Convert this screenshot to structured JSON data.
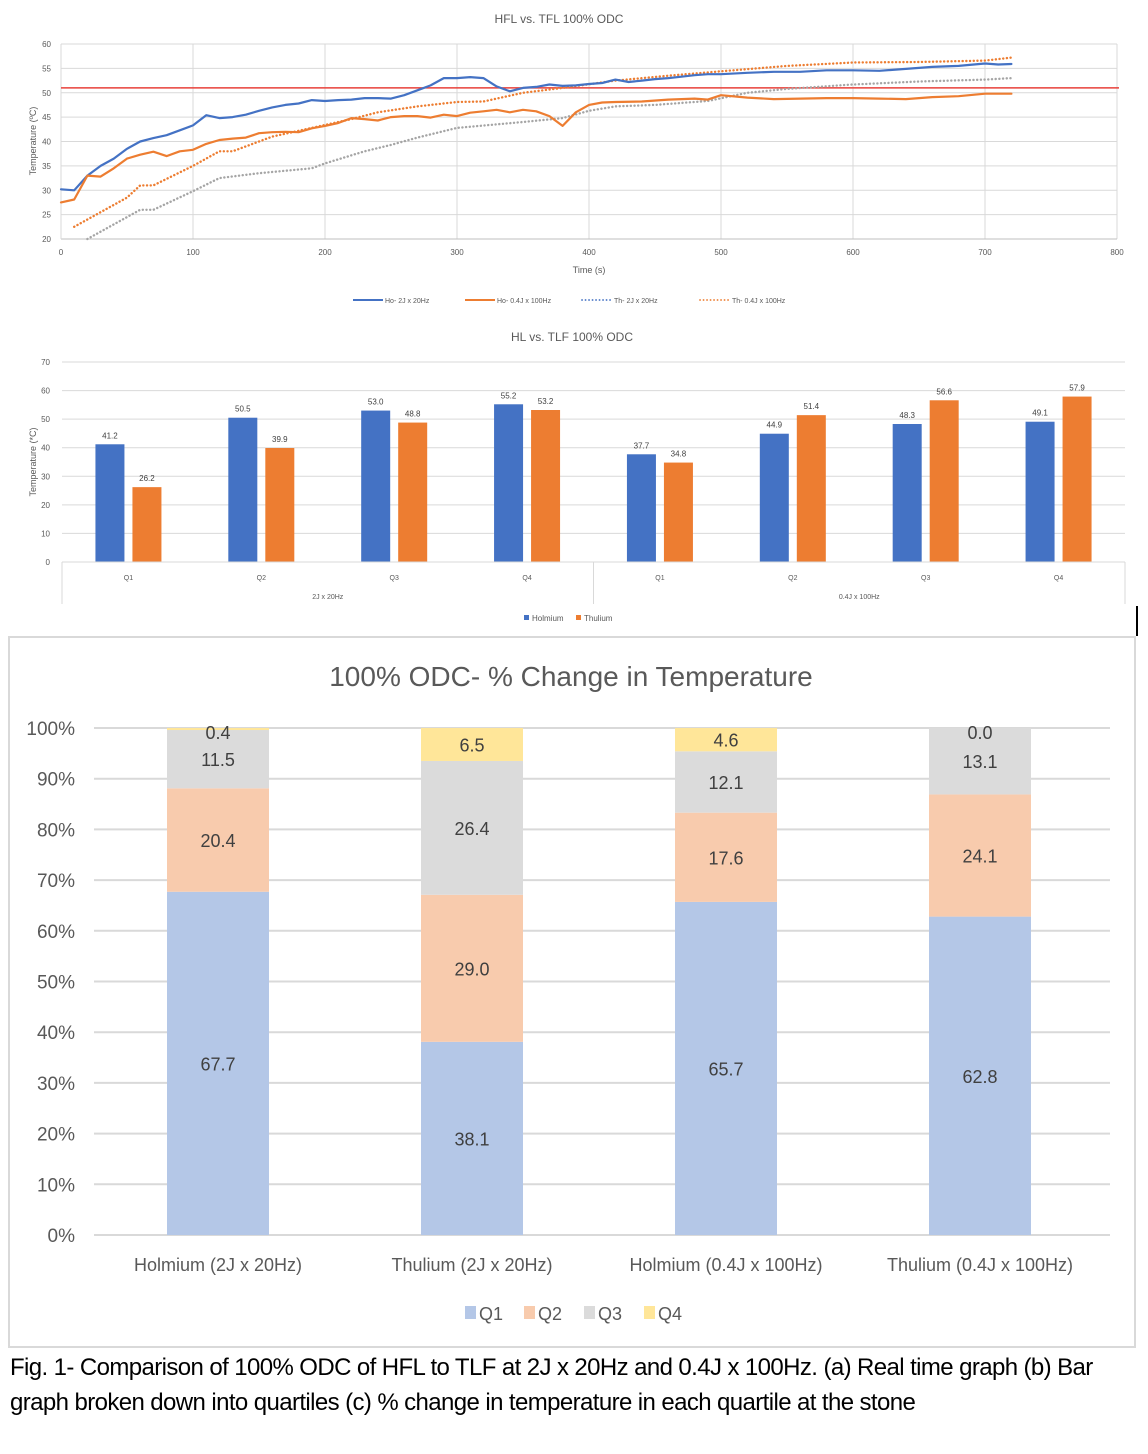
{
  "chart_data": [
    {
      "type": "line",
      "title": "HFL vs. TFL 100% ODC",
      "xlabel": "Time (s)",
      "ylabel": "Temperature (ºC)",
      "xlim": [
        0,
        800
      ],
      "ylim": [
        20,
        60
      ],
      "x_ticks": [
        "0",
        "100",
        "200",
        "300",
        "400",
        "500",
        "600",
        "700",
        "800"
      ],
      "y_ticks": [
        "20",
        "25",
        "30",
        "35",
        "40",
        "45",
        "50",
        "55",
        "60"
      ],
      "grid": true,
      "legend_position": "bottom",
      "reference_line": {
        "y": 51,
        "color": "#e8413a"
      },
      "series": [
        {
          "name": "Ho- 2J x 20Hz",
          "style": "solid",
          "color": "#4472c4",
          "legend_color": "#4472c4",
          "points": [
            [
              0,
              30.2
            ],
            [
              10,
              30
            ],
            [
              20,
              33
            ],
            [
              30,
              35
            ],
            [
              40,
              36.5
            ],
            [
              50,
              38.5
            ],
            [
              60,
              40
            ],
            [
              70,
              40.7
            ],
            [
              80,
              41.3
            ],
            [
              90,
              42.3
            ],
            [
              100,
              43.3
            ],
            [
              110,
              45.4
            ],
            [
              120,
              44.8
            ],
            [
              130,
              45
            ],
            [
              140,
              45.5
            ],
            [
              150,
              46.3
            ],
            [
              160,
              47
            ],
            [
              170,
              47.5
            ],
            [
              180,
              47.8
            ],
            [
              190,
              48.5
            ],
            [
              200,
              48.3
            ],
            [
              210,
              48.5
            ],
            [
              220,
              48.6
            ],
            [
              230,
              48.9
            ],
            [
              240,
              48.9
            ],
            [
              250,
              48.8
            ],
            [
              260,
              49.5
            ],
            [
              270,
              50.5
            ],
            [
              280,
              51.5
            ],
            [
              290,
              53
            ],
            [
              300,
              53
            ],
            [
              310,
              53.2
            ],
            [
              320,
              53
            ],
            [
              330,
              51.3
            ],
            [
              340,
              50.3
            ],
            [
              350,
              51
            ],
            [
              360,
              51.2
            ],
            [
              370,
              51.7
            ],
            [
              380,
              51.4
            ],
            [
              390,
              51.5
            ],
            [
              400,
              51.8
            ],
            [
              410,
              52
            ],
            [
              420,
              52.7
            ],
            [
              430,
              52.2
            ],
            [
              440,
              52.5
            ],
            [
              450,
              52.8
            ],
            [
              460,
              53
            ],
            [
              470,
              53.3
            ],
            [
              480,
              53.6
            ],
            [
              490,
              53.8
            ],
            [
              500,
              53.8
            ],
            [
              520,
              54.1
            ],
            [
              540,
              54.3
            ],
            [
              560,
              54.3
            ],
            [
              580,
              54.6
            ],
            [
              600,
              54.6
            ],
            [
              620,
              54.5
            ],
            [
              640,
              54.9
            ],
            [
              660,
              55.3
            ],
            [
              680,
              55.5
            ],
            [
              700,
              56
            ],
            [
              710,
              55.8
            ],
            [
              720,
              55.9
            ]
          ]
        },
        {
          "name": "Ho- 0.4J x 100Hz",
          "style": "solid",
          "color": "#ed7d31",
          "legend_color": "#ed7d31",
          "points": [
            [
              0,
              27.5
            ],
            [
              10,
              28.1
            ],
            [
              20,
              33
            ],
            [
              30,
              32.8
            ],
            [
              40,
              34.5
            ],
            [
              50,
              36.5
            ],
            [
              60,
              37.3
            ],
            [
              70,
              37.9
            ],
            [
              80,
              37
            ],
            [
              90,
              38
            ],
            [
              100,
              38.3
            ],
            [
              110,
              39.5
            ],
            [
              120,
              40.3
            ],
            [
              130,
              40.6
            ],
            [
              140,
              40.8
            ],
            [
              150,
              41.7
            ],
            [
              160,
              41.9
            ],
            [
              170,
              42
            ],
            [
              180,
              41.9
            ],
            [
              190,
              42.7
            ],
            [
              200,
              43.2
            ],
            [
              210,
              43.8
            ],
            [
              220,
              44.8
            ],
            [
              230,
              44.6
            ],
            [
              240,
              44.3
            ],
            [
              250,
              45
            ],
            [
              260,
              45.2
            ],
            [
              270,
              45.2
            ],
            [
              280,
              44.9
            ],
            [
              290,
              45.5
            ],
            [
              300,
              45.2
            ],
            [
              310,
              45.9
            ],
            [
              320,
              46.2
            ],
            [
              330,
              46.5
            ],
            [
              340,
              46
            ],
            [
              350,
              46.5
            ],
            [
              360,
              46.2
            ],
            [
              370,
              45.2
            ],
            [
              380,
              43.2
            ],
            [
              390,
              46
            ],
            [
              400,
              47.5
            ],
            [
              410,
              48
            ],
            [
              420,
              48.1
            ],
            [
              440,
              48.2
            ],
            [
              460,
              48.6
            ],
            [
              480,
              48.8
            ],
            [
              490,
              48.6
            ],
            [
              500,
              49.5
            ],
            [
              520,
              49
            ],
            [
              540,
              48.7
            ],
            [
              560,
              48.8
            ],
            [
              580,
              48.9
            ],
            [
              600,
              48.9
            ],
            [
              620,
              48.8
            ],
            [
              640,
              48.7
            ],
            [
              660,
              49.1
            ],
            [
              680,
              49.3
            ],
            [
              700,
              49.8
            ],
            [
              720,
              49.8
            ]
          ]
        },
        {
          "name": "Th- 2J x 20Hz",
          "style": "dotted",
          "color": "#a5a5a5",
          "legend_color": "#4472c4",
          "points": [
            [
              20,
              20
            ],
            [
              40,
              23
            ],
            [
              60,
              26
            ],
            [
              70,
              26
            ],
            [
              100,
              29.8
            ],
            [
              120,
              32.5
            ],
            [
              150,
              33.5
            ],
            [
              190,
              34.5
            ],
            [
              200,
              35.5
            ],
            [
              230,
              38
            ],
            [
              250,
              39.3
            ],
            [
              270,
              40.8
            ],
            [
              300,
              42.8
            ],
            [
              350,
              44
            ],
            [
              380,
              44.8
            ],
            [
              400,
              46.3
            ],
            [
              420,
              47.2
            ],
            [
              450,
              47.5
            ],
            [
              490,
              48.3
            ],
            [
              520,
              50
            ],
            [
              550,
              50.8
            ],
            [
              600,
              51.7
            ],
            [
              650,
              52.3
            ],
            [
              700,
              52.7
            ],
            [
              720,
              53
            ]
          ]
        },
        {
          "name": "Th- 0.4J x 100Hz",
          "style": "dotted",
          "color": "#ed7d31",
          "legend_color": "#ed7d31",
          "points": [
            [
              10,
              22.5
            ],
            [
              30,
              25.5
            ],
            [
              50,
              28.5
            ],
            [
              60,
              31
            ],
            [
              70,
              31
            ],
            [
              100,
              35
            ],
            [
              120,
              38
            ],
            [
              130,
              38
            ],
            [
              160,
              41
            ],
            [
              190,
              42.8
            ],
            [
              220,
              44.6
            ],
            [
              240,
              46
            ],
            [
              270,
              47.2
            ],
            [
              300,
              48.1
            ],
            [
              320,
              48.2
            ],
            [
              350,
              50
            ],
            [
              380,
              51
            ],
            [
              420,
              52.5
            ],
            [
              460,
              53.5
            ],
            [
              500,
              54.4
            ],
            [
              550,
              55.5
            ],
            [
              600,
              56.2
            ],
            [
              650,
              56.3
            ],
            [
              700,
              56.6
            ],
            [
              720,
              57.2
            ]
          ]
        }
      ]
    },
    {
      "type": "bar",
      "title": "HL vs. TLF 100% ODC",
      "xlabel": "",
      "ylabel": "Temperature (*C)",
      "ylim": [
        0,
        70
      ],
      "y_ticks": [
        "0",
        "10",
        "20",
        "30",
        "40",
        "50",
        "60",
        "70"
      ],
      "grid": true,
      "legend_position": "bottom",
      "groups": [
        {
          "label": "2J x 20Hz",
          "categories": [
            "Q1",
            "Q2",
            "Q3",
            "Q4"
          ]
        },
        {
          "label": "0.4J x 100Hz",
          "categories": [
            "Q1",
            "Q2",
            "Q3",
            "Q4"
          ]
        }
      ],
      "series": [
        {
          "name": "Holmium",
          "color": "#4472c4",
          "values": [
            41.2,
            50.5,
            53.0,
            55.2,
            37.7,
            44.9,
            48.3,
            49.1
          ],
          "labels": [
            "41.2",
            "50.5",
            "53.0",
            "55.2",
            "37.7",
            "44.9",
            "48.3",
            "49.1"
          ]
        },
        {
          "name": "Thulium",
          "color": "#ed7d31",
          "values": [
            26.2,
            39.9,
            48.8,
            53.2,
            34.8,
            51.4,
            56.6,
            57.9
          ],
          "labels": [
            "26.2",
            "39.9",
            "48.8",
            "53.2",
            "34.8",
            "51.4",
            "56.6",
            "57.9"
          ]
        }
      ]
    },
    {
      "type": "bar",
      "stacked": "percent",
      "title": "100% ODC- % Change in Temperature",
      "xlabel": "",
      "ylabel": "",
      "ylim": [
        0,
        100
      ],
      "y_ticks": [
        "0%",
        "10%",
        "20%",
        "30%",
        "40%",
        "50%",
        "60%",
        "70%",
        "80%",
        "90%",
        "100%"
      ],
      "grid": true,
      "legend_position": "bottom",
      "categories": [
        "Holmium (2J x 20Hz)",
        "Thulium (2J x 20Hz)",
        "Holmium (0.4J x 100Hz)",
        "Thulium (0.4J x 100Hz)"
      ],
      "series": [
        {
          "name": "Q1",
          "color": "#b4c7e7",
          "values": [
            67.7,
            38.1,
            65.7,
            62.8
          ],
          "labels": [
            "67.7",
            "38.1",
            "65.7",
            "62.8"
          ]
        },
        {
          "name": "Q2",
          "color": "#f8cbad",
          "values": [
            20.4,
            29.0,
            17.6,
            24.1
          ],
          "labels": [
            "20.4",
            "29.0",
            "17.6",
            "24.1"
          ]
        },
        {
          "name": "Q3",
          "color": "#dbdbdb",
          "values": [
            11.5,
            26.4,
            12.1,
            13.1
          ],
          "labels": [
            "11.5",
            "26.4",
            "12.1",
            "13.1"
          ]
        },
        {
          "name": "Q4",
          "color": "#ffe699",
          "values": [
            0.4,
            6.5,
            4.6,
            0.0
          ],
          "labels": [
            "0.4",
            "6.5",
            "4.6",
            "0.0"
          ]
        }
      ]
    }
  ],
  "caption": "Fig. 1- Comparison of 100% ODC of HFL to TLF at 2J x 20Hz and 0.4J x 100Hz. (a) Real time graph (b) Bar graph broken down into quartiles (c) % change in temperature in each quartile at the stone"
}
